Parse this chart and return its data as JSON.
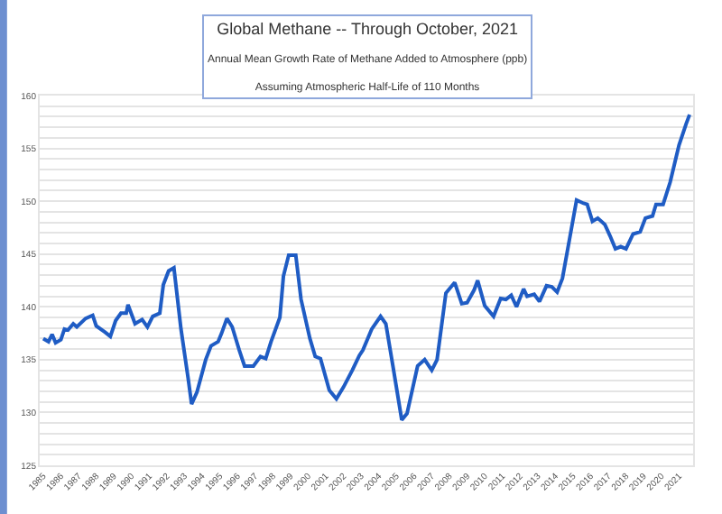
{
  "chart_data": {
    "type": "line",
    "title": "Global Methane -- Through October, 2021",
    "subtitle": "Annual Mean Growth Rate of Methane Added to Atmosphere (ppb)",
    "annotations": [
      "Assuming Atmospheric Half-Life of 110 Months"
    ],
    "series": [
      {
        "color": "#1f5cc4",
        "x": [
          1985.0,
          1985.3,
          1985.5,
          1985.7,
          1986.0,
          1986.2,
          1986.4,
          1986.7,
          1986.9,
          1987.4,
          1987.8,
          1988.0,
          1988.5,
          1988.8,
          1989.1,
          1989.4,
          1989.7,
          1989.8,
          1990.2,
          1990.6,
          1990.9,
          1991.2,
          1991.6,
          1991.8,
          1992.1,
          1992.4,
          1992.8,
          1993.2,
          1993.4,
          1993.7,
          1994.2,
          1994.5,
          1994.9,
          1995.1,
          1995.4,
          1995.7,
          1996.1,
          1996.4,
          1996.9,
          1997.3,
          1997.6,
          1997.9,
          1998.4,
          1998.6,
          1998.9,
          1999.3,
          1999.6,
          2000.1,
          2000.4,
          2000.7,
          2001.2,
          2001.6,
          2002.0,
          2002.5,
          2002.9,
          2003.1,
          2003.6,
          2004.1,
          2004.4,
          2004.8,
          2005.3,
          2005.6,
          2006.2,
          2006.6,
          2007.0,
          2007.3,
          2007.8,
          2008.3,
          2008.7,
          2009.0,
          2009.4,
          2009.6,
          2010.0,
          2010.5,
          2010.9,
          2011.2,
          2011.5,
          2011.8,
          2012.2,
          2012.4,
          2012.8,
          2013.1,
          2013.5,
          2013.8,
          2014.1,
          2014.4,
          2014.8,
          2015.2,
          2015.6,
          2015.8,
          2016.1,
          2016.4,
          2016.8,
          2017.1,
          2017.4,
          2017.7,
          2018.0,
          2018.4,
          2018.8,
          2019.1,
          2019.5,
          2019.7,
          2020.1,
          2020.5,
          2021.0,
          2021.4,
          2021.6
        ],
        "values": [
          137.0,
          136.7,
          137.4,
          136.6,
          136.9,
          137.9,
          137.8,
          138.4,
          138.1,
          138.9,
          139.2,
          138.2,
          137.6,
          137.2,
          138.7,
          139.4,
          139.4,
          140.2,
          138.4,
          138.8,
          138.1,
          139.1,
          139.4,
          142.1,
          143.4,
          143.7,
          137.9,
          133.3,
          130.8,
          131.9,
          135.0,
          136.3,
          136.7,
          137.5,
          138.9,
          138.1,
          135.9,
          134.4,
          134.4,
          135.3,
          135.1,
          136.7,
          139.0,
          142.9,
          144.9,
          144.9,
          140.7,
          137.0,
          135.3,
          135.1,
          132.1,
          131.3,
          132.4,
          134.0,
          135.4,
          135.9,
          137.9,
          139.1,
          138.4,
          134.4,
          129.3,
          129.9,
          134.4,
          135.0,
          134.0,
          135.0,
          141.3,
          142.3,
          140.3,
          140.4,
          141.6,
          142.5,
          140.1,
          139.1,
          140.8,
          140.7,
          141.1,
          140.0,
          141.7,
          141.0,
          141.2,
          140.5,
          142.0,
          141.9,
          141.4,
          142.7,
          146.4,
          150.1,
          149.8,
          149.7,
          148.1,
          148.4,
          147.8,
          146.7,
          145.5,
          145.7,
          145.5,
          146.9,
          147.1,
          148.4,
          148.6,
          149.7,
          149.7,
          151.8,
          155.3,
          157.3,
          158.2
        ]
      }
    ],
    "xlim": [
      1984.8,
      2021.8
    ],
    "xticks": [
      1985,
      1986,
      1987,
      1988,
      1989,
      1990,
      1991,
      1992,
      1993,
      1994,
      1995,
      1996,
      1997,
      1998,
      1999,
      2000,
      2001,
      2002,
      2003,
      2004,
      2005,
      2006,
      2007,
      2008,
      2009,
      2010,
      2011,
      2012,
      2013,
      2014,
      2015,
      2016,
      2017,
      2018,
      2019,
      2020,
      2021
    ],
    "ylim": [
      125,
      160
    ],
    "yticks": [
      125,
      {
        "value": 126,
        "label": null
      },
      {
        "value": 127,
        "label": null
      },
      {
        "value": 128,
        "label": null
      },
      {
        "value": 129,
        "label": null
      },
      130,
      {
        "value": 131,
        "label": null
      },
      {
        "value": 132,
        "label": null
      },
      {
        "value": 133,
        "label": null
      },
      {
        "value": 134,
        "label": null
      },
      135,
      {
        "value": 136,
        "label": null
      },
      {
        "value": 137,
        "label": null
      },
      {
        "value": 138,
        "label": null
      },
      {
        "value": 139,
        "label": null
      },
      140,
      {
        "value": 141,
        "label": null
      },
      {
        "value": 142,
        "label": null
      },
      {
        "value": 143,
        "label": null
      },
      {
        "value": 144,
        "label": null
      },
      145,
      {
        "value": 146,
        "label": null
      },
      {
        "value": 147,
        "label": null
      },
      {
        "value": 148,
        "label": null
      },
      {
        "value": 149,
        "label": null
      },
      150,
      {
        "value": 151,
        "label": null
      },
      {
        "value": 152,
        "label": null
      },
      {
        "value": 153,
        "label": null
      },
      {
        "value": 154,
        "label": null
      },
      155,
      {
        "value": 156,
        "label": null
      },
      {
        "value": 157,
        "label": null
      },
      {
        "value": 158,
        "label": null
      },
      {
        "value": 159,
        "label": null
      },
      160
    ],
    "grid": "y",
    "legend": false,
    "marker": "none",
    "line_style": "solid"
  }
}
